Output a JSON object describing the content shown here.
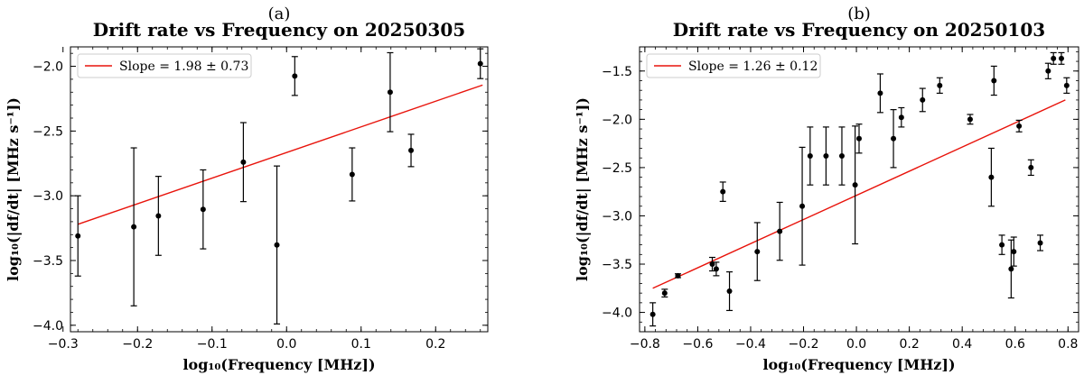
{
  "chart_data": [
    {
      "type": "scatter",
      "panel_label": "(a)",
      "title": "Drift rate vs Frequency on 20250305",
      "xlabel": "log₁₀(Frequency [MHz])",
      "ylabel": "log₁₀(|df/dt| [MHz s⁻¹])",
      "xlim": [
        -0.29,
        0.27
      ],
      "ylim": [
        -4.05,
        -1.85
      ],
      "xticks": [
        -0.3,
        -0.2,
        -0.1,
        0.0,
        0.1,
        0.2
      ],
      "xtick_labels": [
        "−0.3",
        "−0.2",
        "−0.1",
        "0.0",
        "0.1",
        "0.2"
      ],
      "yticks": [
        -4.0,
        -3.5,
        -3.0,
        -2.5,
        -2.0
      ],
      "ytick_labels": [
        "−4.0",
        "−3.5",
        "−3.0",
        "−2.5",
        "−2.0"
      ],
      "grid": false,
      "legend_position": "top-left",
      "fit": {
        "label": "Slope = 1.98 ± 0.73",
        "color": "#e8130b",
        "x": [
          -0.28,
          0.263
        ],
        "y": [
          -3.22,
          -2.145
        ]
      },
      "series": [
        {
          "color": "#000000",
          "points": [
            {
              "x": -0.28,
              "y": -3.31,
              "err": 0.31
            },
            {
              "x": -0.205,
              "y": -3.24,
              "err": 0.61
            },
            {
              "x": -0.172,
              "y": -3.155,
              "err": 0.305
            },
            {
              "x": -0.112,
              "y": -3.105,
              "err": 0.305
            },
            {
              "x": -0.058,
              "y": -2.74,
              "err": 0.305
            },
            {
              "x": -0.013,
              "y": -3.38,
              "err": 0.61
            },
            {
              "x": 0.011,
              "y": -2.075,
              "err": 0.15
            },
            {
              "x": 0.088,
              "y": -2.835,
              "err": 0.205
            },
            {
              "x": 0.139,
              "y": -2.2,
              "err": 0.305
            },
            {
              "x": 0.167,
              "y": -2.65,
              "err": 0.125
            },
            {
              "x": 0.26,
              "y": -1.98,
              "err": 0.115
            }
          ]
        }
      ]
    },
    {
      "type": "scatter",
      "panel_label": "(b)",
      "title": "Drift rate vs Frequency on 20250103",
      "xlabel": "log₁₀(Frequency [MHz])",
      "ylabel": "log₁₀(|df/dt| [MHz s⁻¹])",
      "xlim": [
        -0.82,
        0.84
      ],
      "ylim": [
        -4.2,
        -1.25
      ],
      "xticks": [
        -0.8,
        -0.6,
        -0.4,
        -0.2,
        0.0,
        0.2,
        0.4,
        0.6,
        0.8
      ],
      "xtick_labels": [
        "−0.8",
        "−0.6",
        "−0.4",
        "−0.2",
        "0.0",
        "0.2",
        "0.4",
        "0.6",
        "0.8"
      ],
      "yticks": [
        -4.0,
        -3.5,
        -3.0,
        -2.5,
        -2.0,
        -1.5
      ],
      "ytick_labels": [
        "−4.0",
        "−3.5",
        "−3.0",
        "−2.5",
        "−2.0",
        "−1.5"
      ],
      "grid": false,
      "legend_position": "top-left",
      "fit": {
        "label": "Slope = 1.26 ± 0.12",
        "color": "#e8130b",
        "x": [
          -0.77,
          0.79
        ],
        "y": [
          -3.75,
          -1.8
        ]
      },
      "series": [
        {
          "color": "#000000",
          "points": [
            {
              "x": -0.77,
              "y": -4.02,
              "err": 0.12
            },
            {
              "x": -0.725,
              "y": -3.8,
              "err": 0.04
            },
            {
              "x": -0.675,
              "y": -3.62,
              "err": 0.02
            },
            {
              "x": -0.545,
              "y": -3.5,
              "err": 0.07
            },
            {
              "x": -0.53,
              "y": -3.55,
              "err": 0.07
            },
            {
              "x": -0.505,
              "y": -2.75,
              "err": 0.1
            },
            {
              "x": -0.48,
              "y": -3.78,
              "err": 0.2
            },
            {
              "x": -0.375,
              "y": -3.37,
              "err": 0.3
            },
            {
              "x": -0.29,
              "y": -3.16,
              "err": 0.3
            },
            {
              "x": -0.205,
              "y": -2.9,
              "err": 0.61
            },
            {
              "x": -0.175,
              "y": -2.38,
              "err": 0.3
            },
            {
              "x": -0.115,
              "y": -2.38,
              "err": 0.3
            },
            {
              "x": -0.055,
              "y": -2.38,
              "err": 0.3
            },
            {
              "x": -0.005,
              "y": -2.68,
              "err": 0.61
            },
            {
              "x": 0.01,
              "y": -2.2,
              "err": 0.15
            },
            {
              "x": 0.09,
              "y": -1.73,
              "err": 0.2
            },
            {
              "x": 0.14,
              "y": -2.2,
              "err": 0.3
            },
            {
              "x": 0.17,
              "y": -1.98,
              "err": 0.1
            },
            {
              "x": 0.25,
              "y": -1.8,
              "err": 0.12
            },
            {
              "x": 0.315,
              "y": -1.65,
              "err": 0.08
            },
            {
              "x": 0.43,
              "y": -2.0,
              "err": 0.05
            },
            {
              "x": 0.51,
              "y": -2.6,
              "err": 0.3
            },
            {
              "x": 0.52,
              "y": -1.6,
              "err": 0.15
            },
            {
              "x": 0.55,
              "y": -3.3,
              "err": 0.1
            },
            {
              "x": 0.585,
              "y": -3.55,
              "err": 0.3
            },
            {
              "x": 0.595,
              "y": -3.37,
              "err": 0.15
            },
            {
              "x": 0.615,
              "y": -2.07,
              "err": 0.06
            },
            {
              "x": 0.66,
              "y": -2.5,
              "err": 0.08
            },
            {
              "x": 0.695,
              "y": -3.28,
              "err": 0.08
            },
            {
              "x": 0.725,
              "y": -1.5,
              "err": 0.08
            },
            {
              "x": 0.745,
              "y": -1.37,
              "err": 0.06
            },
            {
              "x": 0.775,
              "y": -1.37,
              "err": 0.06
            },
            {
              "x": 0.795,
              "y": -1.65,
              "err": 0.08
            }
          ]
        }
      ]
    }
  ]
}
